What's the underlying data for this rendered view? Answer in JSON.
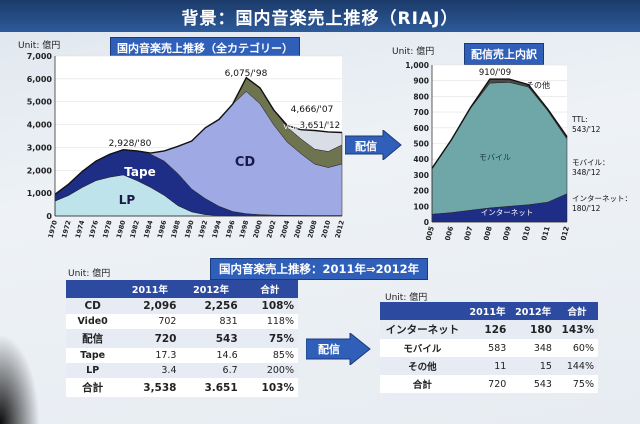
{
  "slide": {
    "title": "背景：国内音楽売上推移（RIAJ）"
  },
  "left_chart_box": {
    "title": "国内音楽売上推移（全カテゴリー）",
    "unit": "Unit: 億円"
  },
  "right_chart_box": {
    "title": "配信売上内訳",
    "unit": "Unit: 億円"
  },
  "arrow_labels": {
    "top": "配信",
    "bottom": "配信"
  },
  "table_section": {
    "title": "国内音楽売上推移：2011年⇒2012年",
    "unit_left": "Unit: 億円",
    "unit_right": "Unit: 億円"
  },
  "left_table": {
    "headers": [
      "",
      "2011年",
      "2012年",
      "合計"
    ],
    "rows": [
      [
        "CD",
        "2,096",
        "2,256",
        "108%"
      ],
      [
        "Vide0",
        "702",
        "831",
        "118%"
      ],
      [
        "配信",
        "720",
        "543",
        "75%"
      ],
      [
        "Tape",
        "17.3",
        "14.6",
        "85%"
      ],
      [
        "LP",
        "3.4",
        "6.7",
        "200%"
      ],
      [
        "合計",
        "3,538",
        "3.651",
        "103%"
      ]
    ]
  },
  "right_table": {
    "headers": [
      "",
      "2011年",
      "2012年",
      "合計"
    ],
    "rows": [
      [
        "インターネット",
        "126",
        "180",
        "143%"
      ],
      [
        "モバイル",
        "583",
        "348",
        "60%"
      ],
      [
        "その他",
        "11",
        "15",
        "144%"
      ],
      [
        "合計",
        "720",
        "543",
        "75%"
      ]
    ]
  },
  "chart_data": [
    {
      "type": "area",
      "stacked": true,
      "x": [
        1970,
        1972,
        1974,
        1976,
        1978,
        1980,
        1982,
        1984,
        1986,
        1988,
        1990,
        1992,
        1994,
        1996,
        1998,
        2000,
        2002,
        2004,
        2006,
        2008,
        2010,
        2012
      ],
      "x_tick_labels": [
        "1970",
        "1972",
        "1974",
        "1976",
        "1978",
        "1980",
        "1982",
        "1984",
        "1986",
        "1988",
        "1990",
        "1992",
        "1994",
        "1996",
        "1998",
        "2000",
        "2002",
        "2004",
        "2006",
        "2008",
        "2010",
        "2012"
      ],
      "ylim": [
        0,
        7000
      ],
      "y_ticks": [
        "0",
        "1,000",
        "2,000",
        "3,000",
        "4,000",
        "5,000",
        "6,000",
        "7,000"
      ],
      "series": [
        {
          "name": "LP",
          "color": "#bfe3ea",
          "values": [
            650,
            900,
            1250,
            1550,
            1700,
            1800,
            1550,
            1250,
            900,
            450,
            180,
            60,
            25,
            15,
            10,
            8,
            6,
            5,
            5,
            4,
            4,
            7
          ]
        },
        {
          "name": "Tape",
          "color": "#1e2d86",
          "values": [
            300,
            500,
            700,
            850,
            1000,
            1100,
            1300,
            1450,
            1500,
            1400,
            1000,
            700,
            400,
            180,
            90,
            50,
            35,
            25,
            20,
            18,
            17,
            15
          ]
        },
        {
          "name": "CD",
          "color": "#9fa9e4",
          "values": [
            0,
            0,
            0,
            0,
            0,
            0,
            0,
            50,
            450,
            1200,
            2100,
            3100,
            3800,
            4700,
            5350,
            4850,
            3950,
            3200,
            2700,
            2250,
            2100,
            2256
          ]
        },
        {
          "name": "Video",
          "color": "#6e7350",
          "values": [
            0,
            0,
            0,
            0,
            0,
            0,
            0,
            0,
            0,
            0,
            0,
            0,
            0,
            0,
            600,
            700,
            650,
            650,
            650,
            650,
            700,
            831
          ]
        },
        {
          "name": "配信",
          "color": "#d9dde6",
          "values": [
            0,
            0,
            0,
            0,
            0,
            0,
            0,
            0,
            0,
            0,
            0,
            0,
            0,
            0,
            0,
            0,
            0,
            80,
            400,
            820,
            860,
            543
          ]
        }
      ],
      "annotations": [
        "2,928/'80",
        "6,075/'98",
        "4,666/'07",
        "3,651/'12",
        "Video",
        "配信"
      ],
      "area_labels": [
        "LP",
        "Tape",
        "CD"
      ]
    },
    {
      "type": "area",
      "stacked": true,
      "x": [
        2005,
        2006,
        2007,
        2008,
        2009,
        2010,
        2011,
        2012
      ],
      "x_tick_labels": [
        "2005",
        "2006",
        "2007",
        "2008",
        "2009",
        "2010",
        "2011",
        "2012"
      ],
      "ylim": [
        0,
        1000
      ],
      "y_ticks": [
        "0",
        "100",
        "200",
        "300",
        "400",
        "500",
        "600",
        "700",
        "800",
        "900",
        "1,000"
      ],
      "series": [
        {
          "name": "インターネット",
          "color": "#1e2d86",
          "values": [
            50,
            60,
            75,
            90,
            100,
            110,
            126,
            180
          ]
        },
        {
          "name": "モバイル",
          "color": "#6fa7a8",
          "values": [
            290,
            460,
            650,
            795,
            790,
            750,
            583,
            348
          ]
        },
        {
          "name": "その他",
          "color": "#4a4a4a",
          "values": [
            2,
            3,
            5,
            25,
            20,
            15,
            11,
            15
          ]
        }
      ],
      "annotations": [
        "910/'09",
        "その他",
        "TTL:",
        "543/'12",
        "モバイル：",
        "348/'12",
        "インターネット：",
        "180/'12"
      ],
      "area_labels": [
        "モバイル",
        "インターネット"
      ]
    }
  ]
}
